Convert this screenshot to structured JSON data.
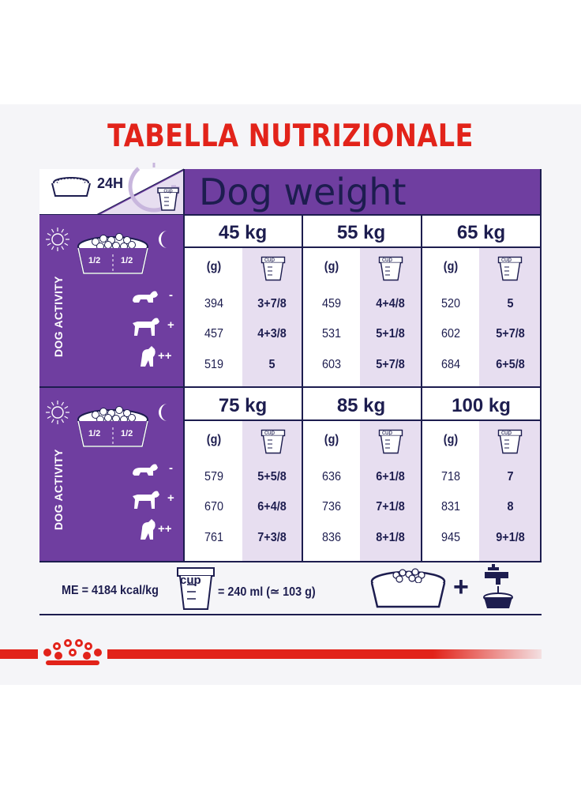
{
  "title": "TABELLA NUTRIZIONALE",
  "header": {
    "label_24h": "24H",
    "cup_label": "cup",
    "dog_weight": "Dog weight"
  },
  "side": {
    "activity_label": "DOG ACTIVITY",
    "half": "1/2",
    "levels": [
      "-",
      "+",
      "++"
    ]
  },
  "col_headers": {
    "grams": "(g)",
    "cup": "cup"
  },
  "blocks": [
    {
      "weights": [
        "45 kg",
        "55 kg",
        "65 kg"
      ],
      "rows": [
        [
          [
            "394",
            "3+7/8"
          ],
          [
            "459",
            "4+4/8"
          ],
          [
            "520",
            "5"
          ]
        ],
        [
          [
            "457",
            "4+3/8"
          ],
          [
            "531",
            "5+1/8"
          ],
          [
            "602",
            "5+7/8"
          ]
        ],
        [
          [
            "519",
            "5"
          ],
          [
            "603",
            "5+7/8"
          ],
          [
            "684",
            "6+5/8"
          ]
        ]
      ]
    },
    {
      "weights": [
        "75 kg",
        "85 kg",
        "100 kg"
      ],
      "rows": [
        [
          [
            "579",
            "5+5/8"
          ],
          [
            "636",
            "6+1/8"
          ],
          [
            "718",
            "7"
          ]
        ],
        [
          [
            "670",
            "6+4/8"
          ],
          [
            "736",
            "7+1/8"
          ],
          [
            "831",
            "8"
          ]
        ],
        [
          [
            "761",
            "7+3/8"
          ],
          [
            "836",
            "8+1/8"
          ],
          [
            "945",
            "9+1/8"
          ]
        ]
      ]
    }
  ],
  "footer": {
    "me": "ME = 4184 kcal/kg",
    "cup_eq": "= 240 ml (≃ 103 g)",
    "cup_label": "cup",
    "plus": "+"
  },
  "colors": {
    "purple": "#6f3ea0",
    "lavender": "#e7def0",
    "navy": "#1d1d4f",
    "red": "#e2231a"
  }
}
